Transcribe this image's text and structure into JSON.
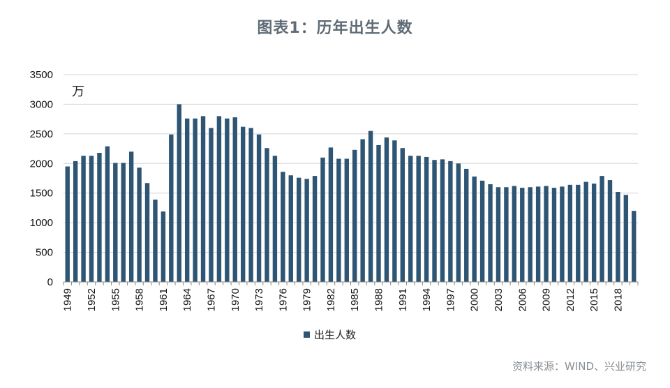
{
  "title": "图表1：历年出生人数",
  "source": "资料来源：WIND、兴业研究",
  "chart_data": {
    "type": "bar",
    "unit_label": "万",
    "ylim": [
      0,
      3500
    ],
    "yticks": [
      0,
      500,
      1000,
      1500,
      2000,
      2500,
      3000,
      3500
    ],
    "grid": true,
    "legend_position": "bottom",
    "bar_color": "#2e5674",
    "x_tick_labels": [
      "1949",
      "1952",
      "1955",
      "1958",
      "1961",
      "1964",
      "1967",
      "1970",
      "1973",
      "1976",
      "1979",
      "1982",
      "1985",
      "1988",
      "1991",
      "1994",
      "1997",
      "2000",
      "2003",
      "2006",
      "2009",
      "2012",
      "2015",
      "2018"
    ],
    "series": [
      {
        "name": "出生人数",
        "x": [
          1949,
          1950,
          1951,
          1952,
          1953,
          1954,
          1955,
          1956,
          1957,
          1958,
          1959,
          1960,
          1961,
          1962,
          1963,
          1964,
          1965,
          1966,
          1967,
          1968,
          1969,
          1970,
          1971,
          1972,
          1973,
          1974,
          1975,
          1976,
          1977,
          1978,
          1979,
          1980,
          1981,
          1982,
          1983,
          1984,
          1985,
          1986,
          1987,
          1988,
          1989,
          1990,
          1991,
          1992,
          1993,
          1994,
          1995,
          1996,
          1997,
          1998,
          1999,
          2000,
          2001,
          2002,
          2003,
          2004,
          2005,
          2006,
          2007,
          2008,
          2009,
          2010,
          2011,
          2012,
          2013,
          2014,
          2015,
          2016,
          2017,
          2018,
          2019,
          2020
        ],
        "values": [
          1950,
          2040,
          2130,
          2130,
          2180,
          2290,
          2010,
          2010,
          2200,
          1930,
          1670,
          1390,
          1190,
          2490,
          3000,
          2760,
          2760,
          2800,
          2600,
          2800,
          2760,
          2780,
          2620,
          2600,
          2490,
          2260,
          2130,
          1860,
          1800,
          1760,
          1740,
          1790,
          2100,
          2270,
          2080,
          2080,
          2230,
          2410,
          2550,
          2310,
          2440,
          2390,
          2260,
          2130,
          2130,
          2110,
          2060,
          2070,
          2040,
          2000,
          1910,
          1780,
          1710,
          1650,
          1600,
          1600,
          1620,
          1590,
          1600,
          1610,
          1620,
          1590,
          1610,
          1640,
          1640,
          1690,
          1660,
          1790,
          1720,
          1520,
          1470,
          1200
        ]
      }
    ]
  }
}
